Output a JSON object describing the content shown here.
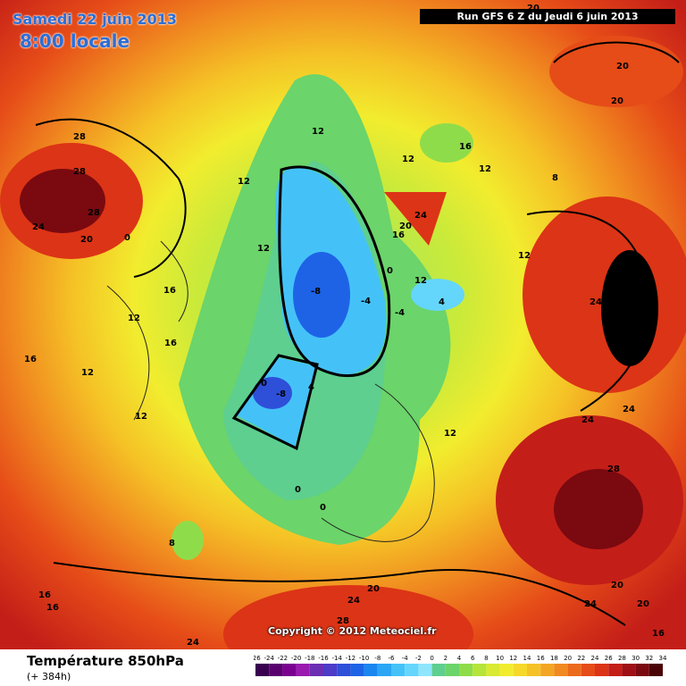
{
  "header": {
    "date": "Samedi 22 juin 2013",
    "time": "8:00 locale",
    "run": "Run GFS 6 Z du Jeudi 6 juin 2013"
  },
  "footer": {
    "variable": "Température 850hPa",
    "lead": "(+ 384h)",
    "copyright": "Copyright © 2012 Meteociel.fr"
  },
  "legend": {
    "ticks": [
      "-26",
      "-24",
      "-22",
      "-20",
      "-18",
      "-16",
      "-14",
      "-12",
      "-10",
      "-8",
      "-6",
      "-4",
      "-2",
      "0",
      "2",
      "4",
      "6",
      "8",
      "10",
      "12",
      "14",
      "16",
      "18",
      "20",
      "22",
      "24",
      "26",
      "28",
      "30",
      "32",
      "34"
    ],
    "colors": [
      "#3a0050",
      "#5a006e",
      "#7a0090",
      "#9a1ab0",
      "#6b2fb4",
      "#4c3cc8",
      "#2e4fd8",
      "#1e63e6",
      "#1a86f0",
      "#2aa6f5",
      "#44c2f8",
      "#64d6fb",
      "#8ee6fc",
      "#5ecf8e",
      "#6bd46a",
      "#8fdc4a",
      "#b6e43a",
      "#d8ea32",
      "#f2ec2e",
      "#f6d82a",
      "#f5c226",
      "#f3a623",
      "#f08a20",
      "#ec6a1c",
      "#e64c18",
      "#dc3416",
      "#c41e18",
      "#9e1016",
      "#7a0a10",
      "#4a0406"
    ]
  },
  "labels": [
    "20",
    "20",
    "20",
    "28",
    "28",
    "28",
    "24",
    "20",
    "0",
    "12",
    "12",
    "12",
    "8",
    "16",
    "12",
    "12",
    "24",
    "20",
    "16",
    "12",
    "4",
    "0",
    "-8",
    "-4",
    "-4",
    "16",
    "16",
    "12",
    "16",
    "12",
    "12",
    "-8",
    "0",
    "4",
    "0",
    "12",
    "0",
    "24",
    "28",
    "24",
    "24",
    "28",
    "8",
    "16",
    "16",
    "20",
    "24",
    "28",
    "20",
    "24",
    "20",
    "24",
    "16",
    "12"
  ]
}
